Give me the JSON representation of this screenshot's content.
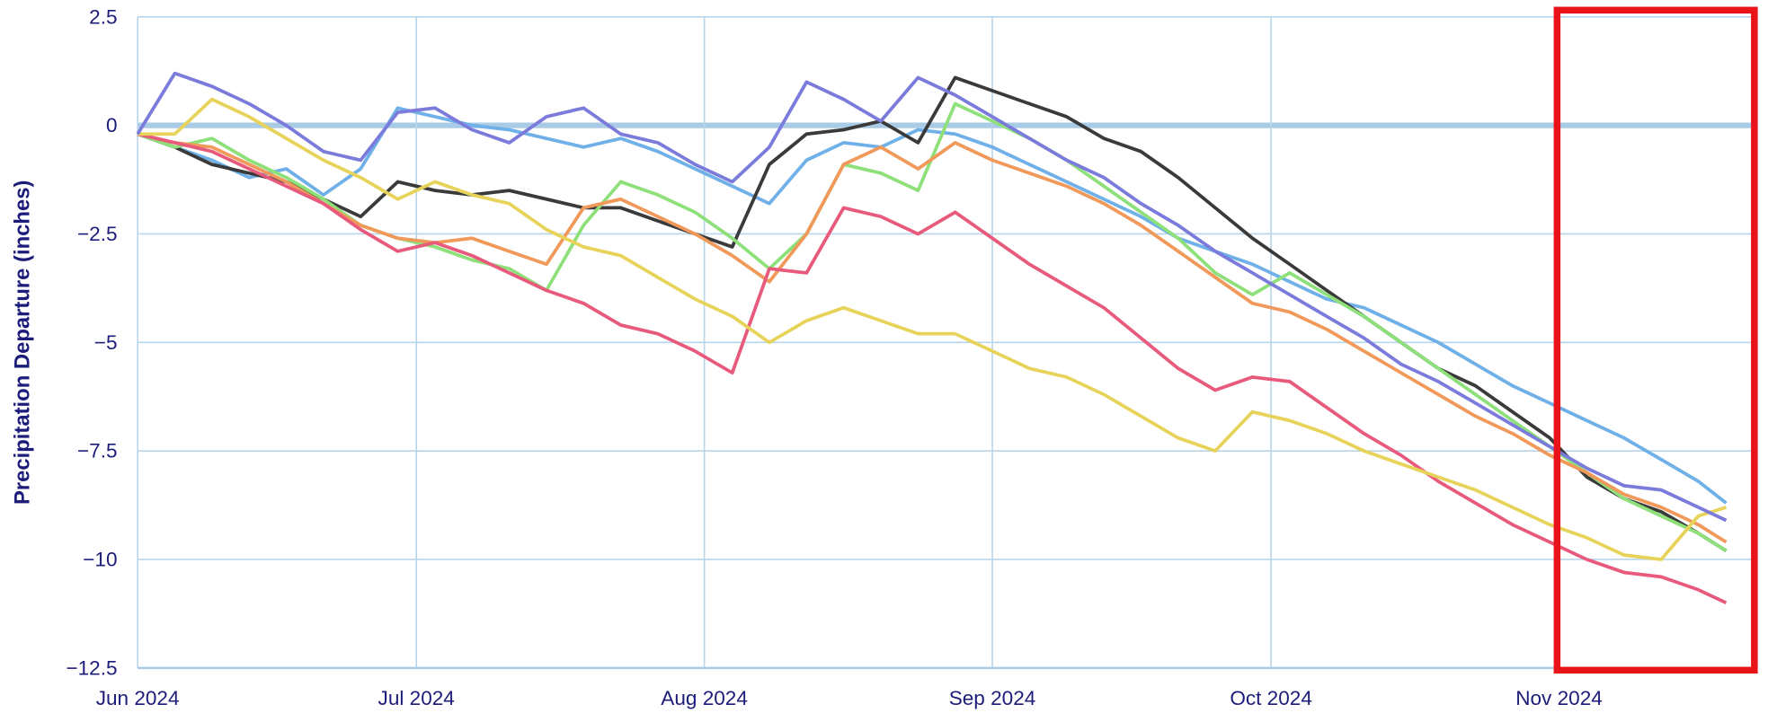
{
  "chart_data": {
    "type": "line",
    "y_label": "Precipitation Departure (inches)",
    "x": [
      0,
      4,
      8,
      12,
      16,
      20,
      24,
      28,
      32,
      36,
      40,
      44,
      48,
      52,
      56,
      60,
      64,
      68,
      72,
      76,
      80,
      84,
      88,
      92,
      96,
      100,
      104,
      108,
      112,
      116,
      120,
      124,
      128,
      132,
      136,
      140,
      144,
      148,
      152,
      156,
      160,
      164,
      168,
      171
    ],
    "xlim": [
      0,
      173.3
    ],
    "xticks": [
      {
        "value": 0,
        "label": "Jun 2024"
      },
      {
        "value": 30,
        "label": "Jul 2024"
      },
      {
        "value": 61,
        "label": "Aug 2024"
      },
      {
        "value": 92,
        "label": "Sep 2024"
      },
      {
        "value": 122,
        "label": "Oct 2024"
      },
      {
        "value": 153,
        "label": "Nov 2024"
      }
    ],
    "ylim": [
      -12.5,
      2.5
    ],
    "yticks": [
      2.5,
      0,
      {
        "value": -2.5,
        "label": "−2.5"
      },
      {
        "value": -5,
        "label": "−5"
      },
      {
        "value": -7.5,
        "label": "−7.5"
      },
      {
        "value": -10,
        "label": "−10"
      },
      {
        "value": -12.5,
        "label": "−12.5"
      }
    ],
    "grid": true,
    "series": [
      {
        "color": "#6fb0e8",
        "values": [
          -0.2,
          -0.5,
          -0.8,
          -1.2,
          -1.0,
          -1.6,
          -1.0,
          0.4,
          0.2,
          0.0,
          -0.1,
          -0.3,
          -0.5,
          -0.3,
          -0.6,
          -1.0,
          -1.4,
          -1.8,
          -0.8,
          -0.4,
          -0.5,
          -0.1,
          -0.2,
          -0.5,
          -0.9,
          -1.3,
          -1.7,
          -2.1,
          -2.6,
          -2.9,
          -3.2,
          -3.6,
          -4.0,
          -4.2,
          -4.6,
          -5.0,
          -5.5,
          -6.0,
          -6.4,
          -6.8,
          -7.2,
          -7.7,
          -8.2,
          -8.7
        ]
      },
      {
        "color": "#3a3a3a",
        "values": [
          -0.2,
          -0.5,
          -0.9,
          -1.1,
          -1.3,
          -1.7,
          -2.1,
          -1.3,
          -1.5,
          -1.6,
          -1.5,
          -1.7,
          -1.9,
          -1.9,
          -2.2,
          -2.5,
          -2.8,
          -0.9,
          -0.2,
          -0.1,
          0.1,
          -0.4,
          1.1,
          0.8,
          0.5,
          0.2,
          -0.3,
          -0.6,
          -1.2,
          -1.9,
          -2.6,
          -3.2,
          -3.8,
          -4.4,
          -5.0,
          -5.6,
          -6.0,
          -6.6,
          -7.2,
          -8.1,
          -8.6,
          -8.9,
          -9.4,
          -9.8
        ]
      },
      {
        "color": "#8ee07a",
        "values": [
          -0.2,
          -0.5,
          -0.3,
          -0.8,
          -1.2,
          -1.7,
          -2.3,
          -2.6,
          -2.8,
          -3.1,
          -3.3,
          -3.8,
          -2.3,
          -1.3,
          -1.6,
          -2.0,
          -2.6,
          -3.3,
          -2.5,
          -0.9,
          -1.1,
          -1.5,
          0.5,
          0.1,
          -0.3,
          -0.8,
          -1.4,
          -2.0,
          -2.6,
          -3.4,
          -3.9,
          -3.4,
          -3.9,
          -4.4,
          -5.0,
          -5.6,
          -6.2,
          -6.8,
          -7.4,
          -8.0,
          -8.6,
          -9.0,
          -9.4,
          -9.8
        ]
      },
      {
        "color": "#f0995a",
        "values": [
          -0.2,
          -0.4,
          -0.5,
          -0.9,
          -1.3,
          -1.8,
          -2.3,
          -2.6,
          -2.7,
          -2.6,
          -2.9,
          -3.2,
          -1.9,
          -1.7,
          -2.1,
          -2.5,
          -3.0,
          -3.6,
          -2.5,
          -0.9,
          -0.5,
          -1.0,
          -0.4,
          -0.8,
          -1.1,
          -1.4,
          -1.8,
          -2.3,
          -2.9,
          -3.5,
          -4.1,
          -4.3,
          -4.7,
          -5.2,
          -5.7,
          -6.2,
          -6.7,
          -7.1,
          -7.6,
          -8.0,
          -8.5,
          -8.8,
          -9.2,
          -9.6
        ]
      },
      {
        "color": "#e85a7c",
        "values": [
          -0.2,
          -0.4,
          -0.6,
          -1.0,
          -1.4,
          -1.8,
          -2.4,
          -2.9,
          -2.7,
          -3.0,
          -3.4,
          -3.8,
          -4.1,
          -4.6,
          -4.8,
          -5.2,
          -5.7,
          -3.3,
          -3.4,
          -1.9,
          -2.1,
          -2.5,
          -2.0,
          -2.6,
          -3.2,
          -3.7,
          -4.2,
          -4.9,
          -5.6,
          -6.1,
          -5.8,
          -5.9,
          -6.5,
          -7.1,
          -7.6,
          -8.2,
          -8.7,
          -9.2,
          -9.6,
          -10.0,
          -10.3,
          -10.4,
          -10.7,
          -11.0
        ]
      },
      {
        "color": "#e8d35a",
        "values": [
          -0.2,
          -0.2,
          0.6,
          0.2,
          -0.3,
          -0.8,
          -1.2,
          -1.7,
          -1.3,
          -1.6,
          -1.8,
          -2.4,
          -2.8,
          -3.0,
          -3.5,
          -4.0,
          -4.4,
          -5.0,
          -4.5,
          -4.2,
          -4.5,
          -4.8,
          -4.8,
          -5.2,
          -5.6,
          -5.8,
          -6.2,
          -6.7,
          -7.2,
          -7.5,
          -6.6,
          -6.8,
          -7.1,
          -7.5,
          -7.8,
          -8.1,
          -8.4,
          -8.8,
          -9.2,
          -9.5,
          -9.9,
          -10.0,
          -9.0,
          -8.8
        ]
      },
      {
        "color": "#7b7bdb",
        "values": [
          -0.2,
          1.2,
          0.9,
          0.5,
          0.0,
          -0.6,
          -0.8,
          0.3,
          0.4,
          -0.1,
          -0.4,
          0.2,
          0.4,
          -0.2,
          -0.4,
          -0.9,
          -1.3,
          -0.5,
          1.0,
          0.6,
          0.1,
          1.1,
          0.7,
          0.2,
          -0.3,
          -0.8,
          -1.2,
          -1.8,
          -2.3,
          -2.9,
          -3.4,
          -3.9,
          -4.4,
          -4.9,
          -5.5,
          -5.9,
          -6.4,
          -6.9,
          -7.4,
          -7.9,
          -8.3,
          -8.4,
          -8.8,
          -9.1
        ]
      }
    ]
  }
}
